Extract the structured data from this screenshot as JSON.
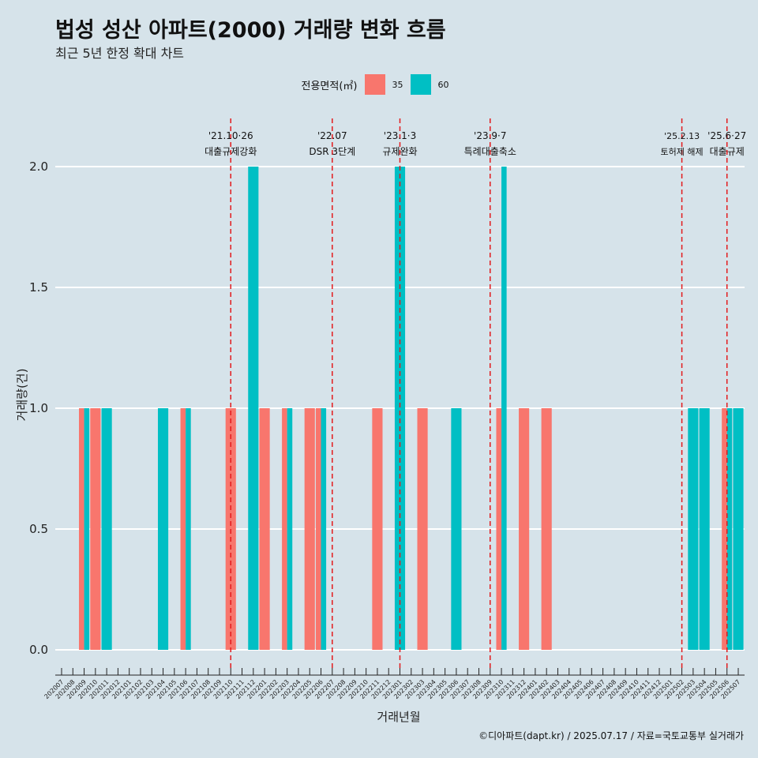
{
  "title": "법성 성산 아파트(2000) 거래량 변화 흐름",
  "subtitle": "최근 5년 한정 확대 차트",
  "caption": "©디아파트(dapt.kr) / 2025.07.17 / 자료=국토교통부 실거래가",
  "colors": {
    "s35": "#f8766d",
    "s60": "#00bfc4",
    "grid": "#ffffff",
    "vline": "#e31a1c"
  },
  "legend": {
    "title": "전용면적(㎡)",
    "items": [
      {
        "label": "35"
      },
      {
        "label": "60"
      }
    ]
  },
  "chart_data": {
    "type": "bar",
    "title": "법성 성산 아파트(2000) 거래량 변화 흐름",
    "xlabel": "거래년월",
    "ylabel": "거래량(건)",
    "ylim": [
      0,
      2
    ],
    "yticks": [
      0.0,
      0.5,
      1.0,
      1.5,
      2.0
    ],
    "ytick_labels": [
      "0.0",
      "0.5",
      "1.0",
      "1.5",
      "2.0"
    ],
    "x_tick_labels": [
      "202007",
      "202008",
      "202009",
      "202010",
      "202011",
      "202012",
      "202101",
      "202102",
      "202103",
      "202104",
      "202105",
      "202106",
      "202107",
      "202108",
      "202109",
      "202110",
      "202111",
      "202112",
      "202201",
      "202202",
      "202203",
      "202204",
      "202205",
      "202206",
      "202207",
      "202208",
      "202209",
      "202210",
      "202211",
      "202212",
      "202301",
      "202302",
      "202303",
      "202304",
      "202305",
      "202306",
      "202307",
      "202308",
      "202309",
      "202310",
      "202311",
      "202312",
      "202401",
      "202402",
      "202403",
      "202404",
      "202405",
      "202406",
      "202407",
      "202408",
      "202409",
      "202410",
      "202411",
      "202412",
      "202501",
      "202502",
      "202503",
      "202504",
      "202505",
      "202506",
      "202507"
    ],
    "series": [
      {
        "name": "35",
        "points": [
          {
            "x": "202009",
            "y": 1
          },
          {
            "x": "202010",
            "y": 1
          },
          {
            "x": "202106",
            "y": 1
          },
          {
            "x": "202110",
            "y": 1
          },
          {
            "x": "202201",
            "y": 1
          },
          {
            "x": "202203",
            "y": 1
          },
          {
            "x": "202205",
            "y": 1
          },
          {
            "x": "202206",
            "y": 1
          },
          {
            "x": "202211",
            "y": 1
          },
          {
            "x": "202303",
            "y": 1
          },
          {
            "x": "202310",
            "y": 1
          },
          {
            "x": "202312",
            "y": 1
          },
          {
            "x": "202402",
            "y": 1
          },
          {
            "x": "202506",
            "y": 1
          }
        ]
      },
      {
        "name": "60",
        "points": [
          {
            "x": "202009",
            "y": 1
          },
          {
            "x": "202011",
            "y": 1
          },
          {
            "x": "202104",
            "y": 1
          },
          {
            "x": "202106",
            "y": 1
          },
          {
            "x": "202112",
            "y": 2
          },
          {
            "x": "202203",
            "y": 1
          },
          {
            "x": "202206",
            "y": 1
          },
          {
            "x": "202301",
            "y": 2
          },
          {
            "x": "202306",
            "y": 1
          },
          {
            "x": "202310",
            "y": 2
          },
          {
            "x": "202503",
            "y": 1
          },
          {
            "x": "202504",
            "y": 1
          },
          {
            "x": "202506",
            "y": 1
          },
          {
            "x": "202507",
            "y": 1
          }
        ]
      }
    ],
    "events": [
      {
        "x": "202110",
        "date": "'21.10·26",
        "label": "대출규제강화"
      },
      {
        "x": "202207",
        "date": "'22.07",
        "label": "DSR 3단계"
      },
      {
        "x": "202301",
        "date": "'23.1·3",
        "label": "규제완화"
      },
      {
        "x": "202309",
        "date": "'23.9·7",
        "label": "특례대출축소"
      },
      {
        "x": "202502",
        "date": "'25.2.13",
        "label": "토허제 해제"
      },
      {
        "x": "202506",
        "date": "'25.6·27",
        "label": "대출규제"
      }
    ]
  }
}
